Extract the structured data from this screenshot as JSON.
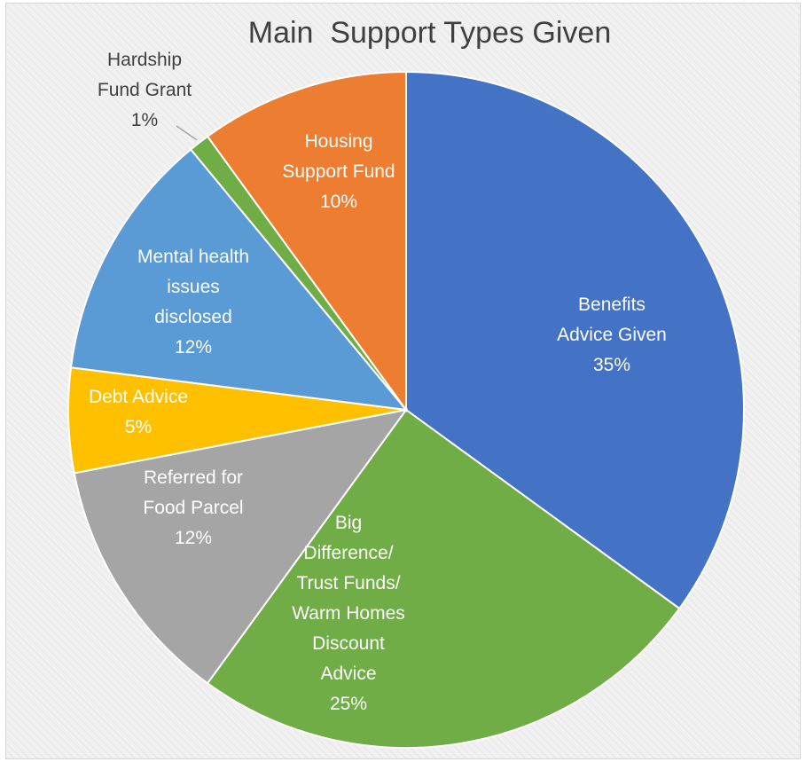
{
  "chart_data": {
    "type": "pie",
    "title": "Main  Support Types Given",
    "slices": [
      {
        "label_lines": [
          "Benefits",
          "Advice Given"
        ],
        "value": 35,
        "value_label": "35%",
        "color": "#4472c4"
      },
      {
        "label_lines": [
          "Big",
          "Difference/",
          "Trust Funds/",
          "Warm Homes",
          "Discount",
          "Advice"
        ],
        "value": 25,
        "value_label": "25%",
        "color": "#70ad47"
      },
      {
        "label_lines": [
          "Referred for",
          "Food Parcel"
        ],
        "value": 12,
        "value_label": "12%",
        "color": "#a5a5a5"
      },
      {
        "label_lines": [
          "Debt Advice"
        ],
        "value": 5,
        "value_label": "5%",
        "color": "#ffc000"
      },
      {
        "label_lines": [
          "Mental health",
          "issues",
          "disclosed"
        ],
        "value": 12,
        "value_label": "12%",
        "color": "#5b9bd5"
      },
      {
        "label_lines": [
          "Hardship",
          "Fund Grant"
        ],
        "value": 1,
        "value_label": "1%",
        "color": "#70ad47",
        "label_position": "outside"
      },
      {
        "label_lines": [
          "Housing",
          "Support Fund"
        ],
        "value": 10,
        "value_label": "10%",
        "color": "#ed7d31"
      }
    ]
  }
}
